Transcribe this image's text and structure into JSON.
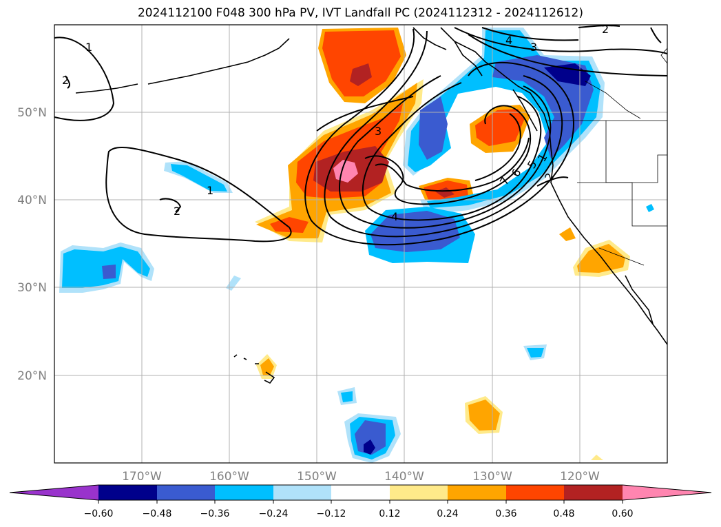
{
  "title": "2024112100 F048 300 hPa PV, IVT Landfall PC (2024112312 - 2024112612)",
  "axes": {
    "lon_ticks": [
      "170°W",
      "160°W",
      "150°W",
      "140°W",
      "130°W",
      "120°W"
    ],
    "lat_ticks": [
      "50°N",
      "40°N",
      "30°N",
      "20°N"
    ]
  },
  "colorbar": {
    "ticks": [
      "−0.60",
      "−0.48",
      "−0.36",
      "−0.24",
      "−0.12",
      "0.12",
      "0.24",
      "0.36",
      "0.48",
      "0.60"
    ],
    "colors": [
      "#9933cc",
      "#00008b",
      "#3a5bd0",
      "#00bfff",
      "#b0e2fa",
      "#ffffff",
      "#ffea8a",
      "#ffa500",
      "#ff4500",
      "#b22222",
      "#ff85b0"
    ]
  },
  "contour_labels": [
    "1",
    "1",
    "2",
    "2",
    "3",
    "4",
    "4",
    "3",
    "2",
    "7",
    "6",
    "5",
    "1",
    "2"
  ]
}
